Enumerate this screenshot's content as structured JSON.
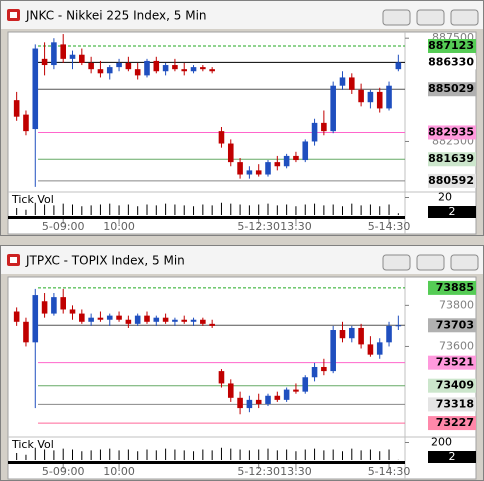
{
  "chart_data": [
    {
      "type": "candlestick",
      "title": "JNKC - Nikkei 225 Index, 5 Min",
      "ylim": [
        880150,
        887800
      ],
      "yticks": [
        887500,
        882500
      ],
      "up_color": "#1f4fbf",
      "down_color": "#c00000",
      "open": [
        884500,
        883800,
        883100,
        886500,
        886200,
        887200,
        886500,
        886700,
        886300,
        886000,
        885800,
        886100,
        886300,
        886000,
        885700,
        886400,
        885900,
        886200,
        886000,
        885900,
        886100,
        886000,
        883000,
        882400,
        881500,
        880900,
        881100,
        880900,
        881500,
        881300,
        881800,
        881600,
        882500,
        883400,
        883000,
        885200,
        885600,
        885000,
        884400,
        884900,
        884100,
        886000
      ],
      "high": [
        884900,
        884000,
        887200,
        887300,
        887500,
        887700,
        886900,
        887000,
        886600,
        886400,
        886200,
        886500,
        886600,
        886300,
        886500,
        886600,
        886300,
        886500,
        886300,
        886200,
        886200,
        886100,
        883200,
        882600,
        881700,
        881300,
        881400,
        881600,
        881800,
        881900,
        882000,
        882600,
        883600,
        884000,
        885400,
        885900,
        885800,
        885300,
        885000,
        885100,
        885400,
        886700
      ],
      "low": [
        883500,
        882800,
        880300,
        885700,
        886000,
        886300,
        886000,
        886200,
        885800,
        885600,
        885500,
        885900,
        885900,
        885500,
        885600,
        885800,
        885700,
        885900,
        885700,
        885800,
        885900,
        885800,
        882200,
        881300,
        880700,
        880700,
        880800,
        880800,
        881100,
        881200,
        881500,
        881500,
        882300,
        882800,
        882900,
        885000,
        884800,
        884200,
        884100,
        883900,
        884000,
        885900
      ],
      "close": [
        883700,
        883000,
        887000,
        886200,
        887300,
        886500,
        886700,
        886300,
        886000,
        885800,
        886100,
        886300,
        886000,
        885700,
        886400,
        885900,
        886200,
        886000,
        885900,
        886100,
        886000,
        885900,
        882400,
        881500,
        880900,
        881100,
        880900,
        881500,
        881300,
        881800,
        881600,
        882500,
        883400,
        883000,
        885200,
        885600,
        885000,
        884400,
        884900,
        884100,
        885200,
        886330
      ],
      "levels": [
        {
          "value": 887123,
          "color": "#22aa22",
          "bg": "#55cc55",
          "dashed": true
        },
        {
          "value": 886330,
          "color": "#000000",
          "bg": "#ffffff",
          "dashed": false
        },
        {
          "value": 885029,
          "color": "#555555",
          "bg": "#b0b0b0",
          "dashed": false
        },
        {
          "value": 882935,
          "color": "#ff66cc",
          "bg": "#ff99dd",
          "dashed": false
        },
        {
          "value": 881639,
          "color": "#66aa66",
          "bg": "#cce6cc",
          "dashed": false
        },
        {
          "value": 880592,
          "color": "#888888",
          "bg": "#e4e4e4",
          "dashed": false
        }
      ],
      "volume_label": "Tick Vol",
      "volume_ylim": [
        0,
        24
      ],
      "volume_yticks": [
        20
      ],
      "volume": [
        8,
        6,
        14,
        12,
        11,
        13,
        12,
        10,
        11,
        12,
        13,
        11,
        12,
        10,
        12,
        11,
        13,
        12,
        11,
        10,
        12,
        11,
        14,
        13,
        12,
        11,
        12,
        13,
        11,
        12,
        10,
        12,
        13,
        11,
        12,
        10,
        13,
        11,
        12,
        10,
        12,
        2
      ],
      "xticks": [
        {
          "value": 5,
          "label": "5-09:00"
        },
        {
          "value": 11,
          "label": "10:00"
        },
        {
          "value": 26,
          "label": "5-12:30"
        },
        {
          "value": 30,
          "label": "13:30"
        },
        {
          "value": 40,
          "label": "5-14:30"
        }
      ]
    },
    {
      "type": "candlestick",
      "title": "JTPXC - TOPIX Index, 5 Min",
      "ylim": [
        73169,
        73938
      ],
      "yticks": [
        73800,
        73600
      ],
      "up_color": "#1f4fbf",
      "down_color": "#c00000",
      "open": [
        73770,
        73720,
        73620,
        73820,
        73760,
        73840,
        73780,
        73760,
        73720,
        73740,
        73730,
        73750,
        73730,
        73710,
        73750,
        73720,
        73740,
        73720,
        73730,
        73720,
        73730,
        73710,
        73480,
        73420,
        73350,
        73300,
        73340,
        73320,
        73360,
        73340,
        73390,
        73380,
        73450,
        73500,
        73480,
        73680,
        73640,
        73690,
        73610,
        73560,
        73620,
        73700
      ],
      "high": [
        73790,
        73740,
        73880,
        73860,
        73860,
        73880,
        73800,
        73780,
        73760,
        73770,
        73760,
        73770,
        73750,
        73760,
        73770,
        73750,
        73760,
        73740,
        73750,
        73740,
        73740,
        73730,
        73490,
        73440,
        73380,
        73360,
        73370,
        73370,
        73380,
        73400,
        73420,
        73460,
        73520,
        73540,
        73700,
        73720,
        73700,
        73710,
        73650,
        73640,
        73720,
        73750
      ],
      "low": [
        73700,
        73600,
        73300,
        73740,
        73750,
        73760,
        73730,
        73710,
        73700,
        73720,
        73700,
        73720,
        73690,
        73700,
        73710,
        73700,
        73710,
        73700,
        73710,
        73700,
        73700,
        73690,
        73400,
        73330,
        73270,
        73280,
        73300,
        73310,
        73330,
        73330,
        73370,
        73370,
        73430,
        73460,
        73470,
        73620,
        73620,
        73590,
        73550,
        73540,
        73600,
        73680
      ],
      "close": [
        73720,
        73620,
        73850,
        73760,
        73840,
        73780,
        73760,
        73720,
        73740,
        73730,
        73750,
        73730,
        73710,
        73750,
        73720,
        73740,
        73720,
        73730,
        73720,
        73730,
        73710,
        73700,
        73420,
        73350,
        73300,
        73340,
        73320,
        73360,
        73340,
        73390,
        73380,
        73450,
        73500,
        73480,
        73680,
        73640,
        73690,
        73610,
        73560,
        73620,
        73700,
        73703
      ],
      "levels": [
        {
          "value": 73885,
          "color": "#22aa22",
          "bg": "#55cc55",
          "dashed": true
        },
        {
          "value": 73703,
          "color": "#555555",
          "bg": "#b0b0b0",
          "dashed": false
        },
        {
          "value": 73521,
          "color": "#ff66cc",
          "bg": "#ff99dd",
          "dashed": false
        },
        {
          "value": 73409,
          "color": "#66aa66",
          "bg": "#cce6cc",
          "dashed": false
        },
        {
          "value": 73318,
          "color": "#888888",
          "bg": "#e4e4e4",
          "dashed": false
        },
        {
          "value": 73227,
          "color": "#ff6699",
          "bg": "#ff88aa",
          "dashed": false
        }
      ],
      "volume_label": "Tick Vol",
      "volume_ylim": [
        0,
        240
      ],
      "volume_yticks": [
        200
      ],
      "volume": [
        80,
        60,
        140,
        120,
        110,
        130,
        120,
        100,
        110,
        120,
        130,
        110,
        120,
        100,
        120,
        110,
        130,
        120,
        110,
        100,
        120,
        110,
        140,
        130,
        120,
        110,
        120,
        130,
        110,
        120,
        100,
        120,
        130,
        110,
        120,
        100,
        130,
        110,
        120,
        100,
        120,
        2
      ],
      "xticks": [
        {
          "value": 5,
          "label": "5-09:00"
        },
        {
          "value": 11,
          "label": "10:00"
        },
        {
          "value": 26,
          "label": "5-12:30"
        },
        {
          "value": 30,
          "label": "13:30"
        },
        {
          "value": 40,
          "label": "5-14:30"
        }
      ]
    }
  ]
}
